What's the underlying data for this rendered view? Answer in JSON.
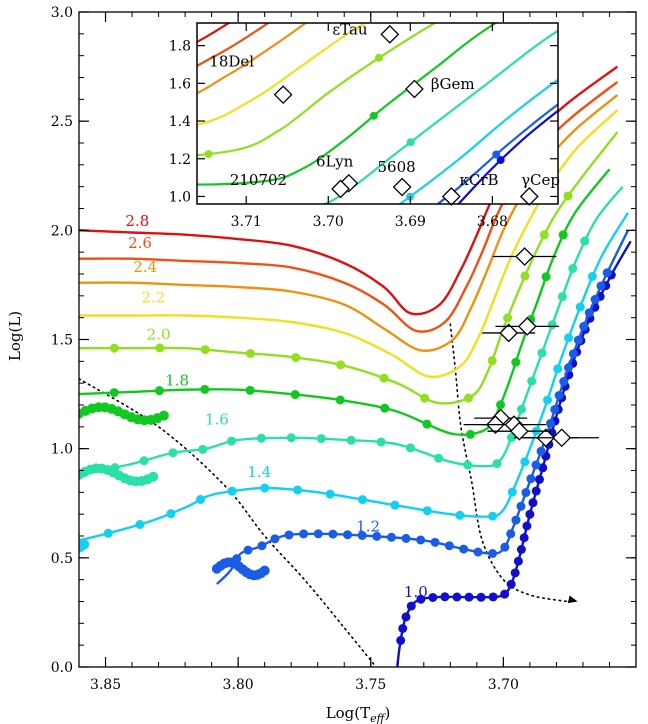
{
  "chart_data": {
    "type": "line",
    "xlabel": "Log(T",
    "xlabel_sub": "eff",
    "xlabel_close": ")",
    "ylabel": "Log(L)",
    "xlim": [
      3.86,
      3.65
    ],
    "ylim": [
      0.0,
      3.0
    ],
    "x_ticks": [
      "3.85",
      "3.80",
      "3.75",
      "3.70"
    ],
    "y_ticks": [
      "0.0",
      "0.5",
      "1.0",
      "1.5",
      "2.0",
      "2.5",
      "3.0"
    ],
    "series": [
      {
        "name": "1.0",
        "color": "#1010cc",
        "label_at": [
          3.733,
          0.32
        ],
        "track": [
          [
            3.74,
            0.0
          ],
          [
            3.739,
            0.1
          ],
          [
            3.737,
            0.22
          ],
          [
            3.733,
            0.3
          ],
          [
            3.725,
            0.32
          ],
          [
            3.715,
            0.32
          ],
          [
            3.705,
            0.32
          ],
          [
            3.7,
            0.33
          ],
          [
            3.697,
            0.38
          ],
          [
            3.694,
            0.5
          ],
          [
            3.69,
            0.7
          ],
          [
            3.685,
            0.92
          ],
          [
            3.68,
            1.15
          ],
          [
            3.675,
            1.35
          ],
          [
            3.668,
            1.58
          ],
          [
            3.66,
            1.78
          ],
          [
            3.652,
            1.95
          ]
        ],
        "cluster": [
          3.74,
          3.733,
          3.2
        ]
      },
      {
        "name": "1.2",
        "color": "#1a5ce6",
        "label_at": [
          3.751,
          0.62
        ],
        "track": [
          [
            3.808,
            0.38
          ],
          [
            3.803,
            0.44
          ],
          [
            3.799,
            0.52
          ],
          [
            3.792,
            0.55
          ],
          [
            3.783,
            0.6
          ],
          [
            3.77,
            0.61
          ],
          [
            3.75,
            0.6
          ],
          [
            3.73,
            0.58
          ],
          [
            3.715,
            0.54
          ],
          [
            3.705,
            0.52
          ],
          [
            3.7,
            0.54
          ],
          [
            3.696,
            0.65
          ],
          [
            3.69,
            0.85
          ],
          [
            3.684,
            1.05
          ],
          [
            3.678,
            1.28
          ],
          [
            3.671,
            1.52
          ],
          [
            3.663,
            1.75
          ],
          [
            3.653,
            2.0
          ]
        ],
        "cluster": [
          3.808,
          3.79,
          0.45
        ]
      },
      {
        "name": "1.4",
        "color": "#12d0f0",
        "label_at": [
          3.792,
          0.87
        ],
        "track": [
          [
            3.876,
            0.55
          ],
          [
            3.86,
            0.58
          ],
          [
            3.835,
            0.66
          ],
          [
            3.82,
            0.73
          ],
          [
            3.812,
            0.78
          ],
          [
            3.805,
            0.8
          ],
          [
            3.79,
            0.82
          ],
          [
            3.77,
            0.8
          ],
          [
            3.745,
            0.75
          ],
          [
            3.72,
            0.7
          ],
          [
            3.705,
            0.69
          ],
          [
            3.7,
            0.72
          ],
          [
            3.696,
            0.82
          ],
          [
            3.69,
            1.0
          ],
          [
            3.684,
            1.2
          ],
          [
            3.678,
            1.42
          ],
          [
            3.671,
            1.65
          ],
          [
            3.663,
            1.88
          ],
          [
            3.653,
            2.08
          ]
        ],
        "cluster": [
          3.876,
          3.858,
          0.57
        ]
      },
      {
        "name": "1.6",
        "color": "#28e0a8",
        "label_at": [
          3.808,
          1.11
        ],
        "track": [
          [
            3.86,
            0.88
          ],
          [
            3.84,
            0.93
          ],
          [
            3.825,
            0.98
          ],
          [
            3.812,
            1.0
          ],
          [
            3.8,
            1.04
          ],
          [
            3.78,
            1.05
          ],
          [
            3.76,
            1.04
          ],
          [
            3.74,
            1.02
          ],
          [
            3.72,
            0.94
          ],
          [
            3.706,
            0.92
          ],
          [
            3.701,
            0.95
          ],
          [
            3.697,
            1.05
          ],
          [
            3.692,
            1.22
          ],
          [
            3.686,
            1.42
          ],
          [
            3.68,
            1.62
          ],
          [
            3.673,
            1.85
          ],
          [
            3.665,
            2.05
          ],
          [
            3.655,
            2.2
          ]
        ],
        "cluster": [
          3.86,
          3.832,
          0.88
        ]
      },
      {
        "name": "1.8",
        "color": "#10c820",
        "label_at": [
          3.823,
          1.29
        ],
        "track": [
          [
            3.86,
            1.25
          ],
          [
            3.84,
            1.26
          ],
          [
            3.82,
            1.27
          ],
          [
            3.8,
            1.27
          ],
          [
            3.78,
            1.25
          ],
          [
            3.76,
            1.22
          ],
          [
            3.74,
            1.17
          ],
          [
            3.72,
            1.07
          ],
          [
            3.708,
            1.08
          ],
          [
            3.703,
            1.15
          ],
          [
            3.698,
            1.3
          ],
          [
            3.693,
            1.48
          ],
          [
            3.687,
            1.68
          ],
          [
            3.681,
            1.88
          ],
          [
            3.673,
            2.08
          ],
          [
            3.66,
            2.28
          ]
        ],
        "cluster": [
          3.86,
          3.828,
          1.16
        ]
      },
      {
        "name": "2.0",
        "color": "#90e020",
        "label_at": [
          3.83,
          1.5
        ],
        "track": [
          [
            3.86,
            1.46
          ],
          [
            3.84,
            1.46
          ],
          [
            3.82,
            1.46
          ],
          [
            3.8,
            1.44
          ],
          [
            3.78,
            1.42
          ],
          [
            3.76,
            1.38
          ],
          [
            3.74,
            1.3
          ],
          [
            3.725,
            1.21
          ],
          [
            3.712,
            1.24
          ],
          [
            3.706,
            1.35
          ],
          [
            3.7,
            1.55
          ],
          [
            3.694,
            1.73
          ],
          [
            3.687,
            1.92
          ],
          [
            3.68,
            2.08
          ],
          [
            3.67,
            2.25
          ],
          [
            3.657,
            2.45
          ]
        ],
        "cluster": []
      },
      {
        "name": "2.2",
        "color": "#f0e020",
        "label_at": [
          3.832,
          1.67
        ],
        "track": [
          [
            3.86,
            1.61
          ],
          [
            3.84,
            1.61
          ],
          [
            3.82,
            1.61
          ],
          [
            3.8,
            1.6
          ],
          [
            3.78,
            1.58
          ],
          [
            3.76,
            1.53
          ],
          [
            3.742,
            1.43
          ],
          [
            3.728,
            1.33
          ],
          [
            3.716,
            1.38
          ],
          [
            3.709,
            1.52
          ],
          [
            3.703,
            1.7
          ],
          [
            3.697,
            1.88
          ],
          [
            3.69,
            2.05
          ],
          [
            3.683,
            2.2
          ],
          [
            3.672,
            2.38
          ],
          [
            3.657,
            2.55
          ]
        ],
        "cluster": []
      },
      {
        "name": "2.4",
        "color": "#f09010",
        "label_at": [
          3.835,
          1.81
        ],
        "track": [
          [
            3.86,
            1.76
          ],
          [
            3.84,
            1.76
          ],
          [
            3.82,
            1.75
          ],
          [
            3.8,
            1.74
          ],
          [
            3.78,
            1.72
          ],
          [
            3.76,
            1.66
          ],
          [
            3.745,
            1.55
          ],
          [
            3.731,
            1.45
          ],
          [
            3.719,
            1.5
          ],
          [
            3.712,
            1.65
          ],
          [
            3.706,
            1.82
          ],
          [
            3.7,
            2.0
          ],
          [
            3.693,
            2.16
          ],
          [
            3.685,
            2.3
          ],
          [
            3.673,
            2.46
          ],
          [
            3.657,
            2.62
          ]
        ],
        "cluster": []
      },
      {
        "name": "2.6",
        "color": "#f05010",
        "label_at": [
          3.837,
          1.92
        ],
        "track": [
          [
            3.86,
            1.87
          ],
          [
            3.84,
            1.87
          ],
          [
            3.82,
            1.86
          ],
          [
            3.8,
            1.85
          ],
          [
            3.78,
            1.83
          ],
          [
            3.76,
            1.76
          ],
          [
            3.745,
            1.66
          ],
          [
            3.733,
            1.54
          ],
          [
            3.722,
            1.58
          ],
          [
            3.714,
            1.74
          ],
          [
            3.708,
            1.9
          ],
          [
            3.702,
            2.08
          ],
          [
            3.695,
            2.24
          ],
          [
            3.686,
            2.38
          ],
          [
            3.674,
            2.52
          ],
          [
            3.657,
            2.68
          ]
        ],
        "cluster": []
      },
      {
        "name": "2.8",
        "color": "#e01010",
        "label_at": [
          3.838,
          2.02
        ],
        "track": [
          [
            3.86,
            2.0
          ],
          [
            3.84,
            1.99
          ],
          [
            3.82,
            1.98
          ],
          [
            3.8,
            1.96
          ],
          [
            3.78,
            1.93
          ],
          [
            3.76,
            1.85
          ],
          [
            3.745,
            1.74
          ],
          [
            3.735,
            1.62
          ],
          [
            3.724,
            1.66
          ],
          [
            3.716,
            1.82
          ],
          [
            3.71,
            1.98
          ],
          [
            3.704,
            2.15
          ],
          [
            3.697,
            2.3
          ],
          [
            3.688,
            2.44
          ],
          [
            3.676,
            2.58
          ],
          [
            3.657,
            2.75
          ]
        ],
        "cluster": []
      }
    ],
    "dotted_lines": [
      {
        "points": [
          [
            3.86,
            1.32
          ],
          [
            3.83,
            1.1
          ],
          [
            3.805,
            0.83
          ],
          [
            3.79,
            0.6
          ],
          [
            3.775,
            0.4
          ],
          [
            3.76,
            0.18
          ],
          [
            3.748,
            0.0
          ]
        ]
      },
      {
        "points": [
          [
            3.72,
            1.57
          ],
          [
            3.718,
            1.35
          ],
          [
            3.716,
            1.1
          ],
          [
            3.712,
            0.85
          ],
          [
            3.708,
            0.58
          ],
          [
            3.7,
            0.4
          ],
          [
            3.69,
            0.33
          ],
          [
            3.676,
            0.3
          ]
        ]
      }
    ],
    "arrow_end": [
      3.672,
      0.3
    ],
    "stars": [
      {
        "name": "εTau",
        "teff": 3.692,
        "logL": 1.88,
        "err": 0.012
      },
      {
        "name": "18Del",
        "teff": 3.698,
        "logL": 1.53,
        "err": 0.01
      },
      {
        "name": "βGem",
        "teff": 3.691,
        "logL": 1.56,
        "err": 0.012
      },
      {
        "name": "6Lyn",
        "teff": 3.701,
        "logL": 1.14,
        "err": 0.01
      },
      {
        "name": "210702",
        "teff": 3.703,
        "logL": 1.11,
        "err": 0.012
      },
      {
        "name": "5608",
        "teff": 3.696,
        "logL": 1.11,
        "err": 0.012
      },
      {
        "name": "κCrB",
        "teff": 3.684,
        "logL": 1.05,
        "err": 0.012
      },
      {
        "name": "γCep",
        "teff": 3.678,
        "logL": 1.05,
        "err": 0.014
      },
      {
        "name": "",
        "teff": 3.694,
        "logL": 1.08,
        "err": 0.012
      }
    ],
    "inset": {
      "xlim": [
        3.716,
        3.672
      ],
      "ylim": [
        0.96,
        1.92
      ],
      "x_ticks": [
        "3.71",
        "3.70",
        "3.69",
        "3.68"
      ],
      "y_ticks": [
        "1.0",
        "1.2",
        "1.4",
        "1.6",
        "1.8"
      ],
      "stars": [
        {
          "name": "εTau",
          "teff": 3.6925,
          "logL": 1.86
        },
        {
          "name": "18Del",
          "teff": 3.7055,
          "logL": 1.54
        },
        {
          "name": "βGem",
          "teff": 3.6895,
          "logL": 1.57
        },
        {
          "name": "6Lyn",
          "teff": 3.6975,
          "logL": 1.07
        },
        {
          "name": "210702",
          "teff": 3.6985,
          "logL": 1.04
        },
        {
          "name": "5608",
          "teff": 3.691,
          "logL": 1.05
        },
        {
          "name": "κCrB",
          "teff": 3.685,
          "logL": 1.0
        },
        {
          "name": "γCep",
          "teff": 3.6755,
          "logL": 1.0
        }
      ],
      "labels": [
        {
          "text": "εTau",
          "at": [
            3.6995,
            1.86
          ]
        },
        {
          "text": "18Del",
          "at": [
            3.7145,
            1.69
          ]
        },
        {
          "text": "βGem",
          "at": [
            3.6875,
            1.57
          ]
        },
        {
          "text": "6Lyn",
          "at": [
            3.7015,
            1.16
          ]
        },
        {
          "text": "210702",
          "at": [
            3.712,
            1.06
          ]
        },
        {
          "text": "5608",
          "at": [
            3.694,
            1.13
          ]
        },
        {
          "text": "κCrB",
          "at": [
            3.684,
            1.06
          ]
        },
        {
          "text": "γCep",
          "at": [
            3.6765,
            1.06
          ]
        }
      ]
    }
  }
}
